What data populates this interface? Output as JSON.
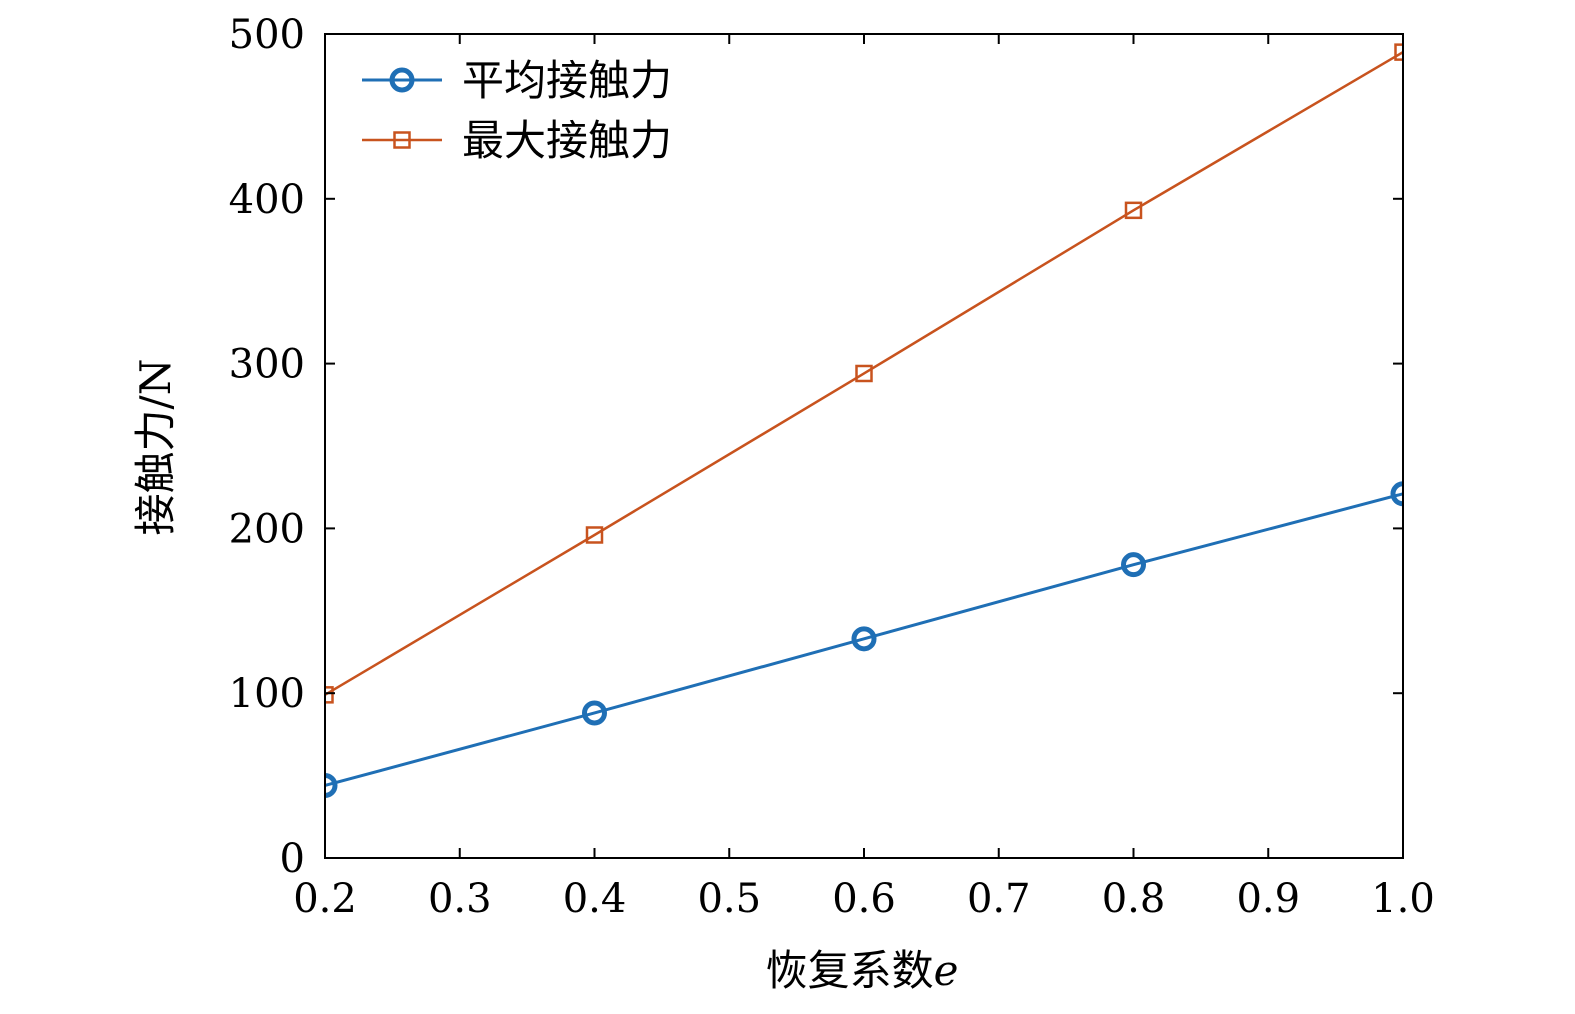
{
  "chart_data": {
    "type": "line",
    "title": "",
    "xlabel": "恢复系数",
    "xlabel_var": "e",
    "ylabel": "接触力/N",
    "x": [
      0.2,
      0.4,
      0.6,
      0.8,
      1.0
    ],
    "xlim": [
      0.2,
      1.0
    ],
    "ylim": [
      0,
      500
    ],
    "xticks": [
      "0.2",
      "0.3",
      "0.4",
      "0.5",
      "0.6",
      "0.7",
      "0.8",
      "0.9",
      "1.0"
    ],
    "yticks": [
      "0",
      "100",
      "200",
      "300",
      "400",
      "500"
    ],
    "grid": false,
    "legend_position": "top-left",
    "series": [
      {
        "name": "平均接触力",
        "marker": "circle",
        "color": "#1f6fb5",
        "values": [
          44,
          88,
          133,
          178,
          221
        ]
      },
      {
        "name": "最大接触力",
        "marker": "square",
        "color": "#c8531e",
        "values": [
          99,
          196,
          294,
          393,
          489
        ]
      }
    ]
  }
}
